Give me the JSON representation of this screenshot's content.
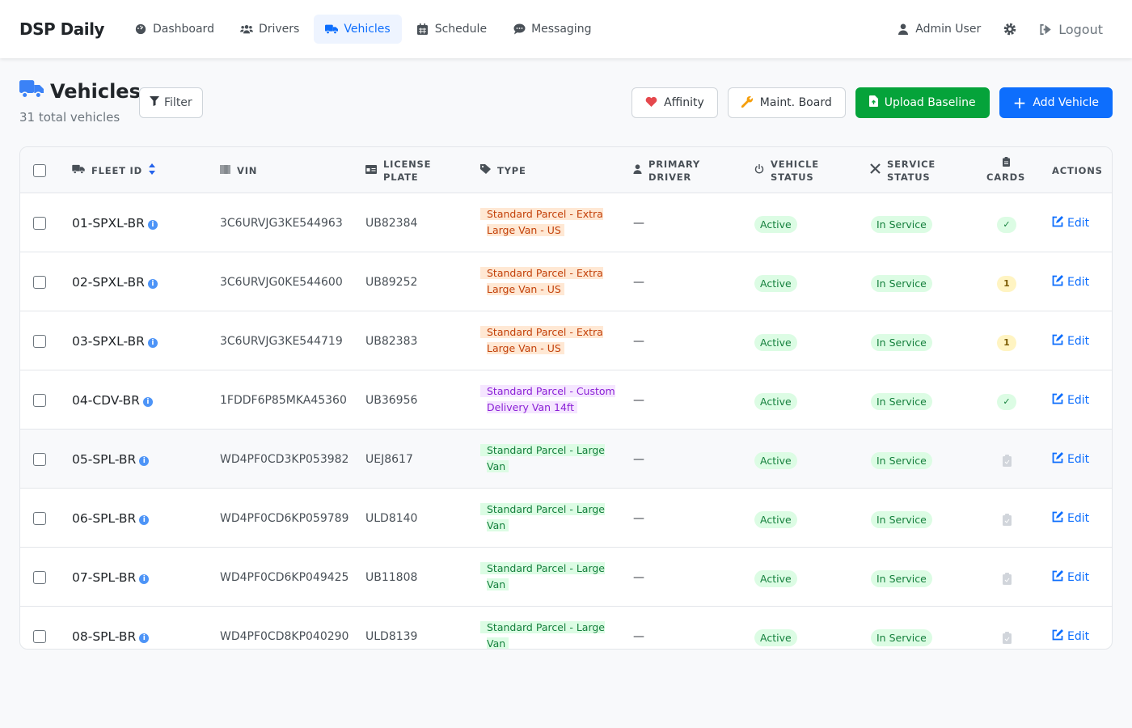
{
  "nav": {
    "brand": "DSP Daily",
    "items": [
      {
        "label": "Dashboard",
        "icon": "gauge-icon"
      },
      {
        "label": "Drivers",
        "icon": "users-icon"
      },
      {
        "label": "Vehicles",
        "icon": "truck-icon",
        "active": true
      },
      {
        "label": "Schedule",
        "icon": "calendar-icon"
      },
      {
        "label": "Messaging",
        "icon": "chat-icon"
      }
    ],
    "user": "Admin User",
    "logout": "Logout"
  },
  "page": {
    "title": "Vehicles",
    "subtitle": "31 total vehicles",
    "filter": "Filter",
    "buttons": {
      "affinity": "Affinity",
      "maint": "Maint. Board",
      "upload": "Upload Baseline",
      "add": "Add Vehicle"
    }
  },
  "colors": {
    "primary": "#0d6efd",
    "success": "#05a33a",
    "heart": "#e5484d",
    "wrench": "#f59e0b"
  },
  "table": {
    "headers": {
      "fleet": "FLEET ID",
      "vin": "VIN",
      "plate1": "LICENSE",
      "plate2": "PLATE",
      "type": "TYPE",
      "driver1": "PRIMARY",
      "driver2": "DRIVER",
      "vstatus1": "VEHICLE",
      "vstatus2": "STATUS",
      "sstatus1": "SERVICE",
      "sstatus2": "STATUS",
      "cards": "CARDS",
      "actions": "ACTIONS"
    },
    "rows": [
      {
        "fleet": "01-SPXL-BR",
        "vin": "3C6URVJG3KE544963",
        "plate": "UB82384",
        "type1": "Standard Parcel - Extra",
        "type2": "Large Van - US",
        "type_color": "orange",
        "driver": "—",
        "vstatus": "Active",
        "sstatus": "In Service",
        "cards": "✓",
        "cards_kind": "ok",
        "edit": "Edit"
      },
      {
        "fleet": "02-SPXL-BR",
        "vin": "3C6URVJG0KE544600",
        "plate": "UB89252",
        "type1": "Standard Parcel - Extra",
        "type2": "Large Van - US",
        "type_color": "orange",
        "driver": "—",
        "vstatus": "Active",
        "sstatus": "In Service",
        "cards": "1",
        "cards_kind": "warn",
        "edit": "Edit"
      },
      {
        "fleet": "03-SPXL-BR",
        "vin": "3C6URVJG3KE544719",
        "plate": "UB82383",
        "type1": "Standard Parcel - Extra",
        "type2": "Large Van - US",
        "type_color": "orange",
        "driver": "—",
        "vstatus": "Active",
        "sstatus": "In Service",
        "cards": "1",
        "cards_kind": "warn",
        "edit": "Edit"
      },
      {
        "fleet": "04-CDV-BR",
        "vin": "1FDDF6P85MKA45360",
        "plate": "UB36956",
        "type1": "Standard Parcel - Custom",
        "type2": "Delivery Van 14ft",
        "type_color": "purple",
        "driver": "—",
        "vstatus": "Active",
        "sstatus": "In Service",
        "cards": "✓",
        "cards_kind": "ok",
        "edit": "Edit"
      },
      {
        "fleet": "05-SPL-BR",
        "vin": "WD4PF0CD3KP053982",
        "plate": "UEJ8617",
        "type1": "Standard Parcel - Large",
        "type2": "Van",
        "type_color": "green",
        "driver": "—",
        "vstatus": "Active",
        "sstatus": "In Service",
        "cards": "",
        "cards_kind": "none",
        "edit": "Edit"
      },
      {
        "fleet": "06-SPL-BR",
        "vin": "WD4PF0CD6KP059789",
        "plate": "ULD8140",
        "type1": "Standard Parcel - Large",
        "type2": "Van",
        "type_color": "green",
        "driver": "—",
        "vstatus": "Active",
        "sstatus": "In Service",
        "cards": "",
        "cards_kind": "none",
        "edit": "Edit"
      },
      {
        "fleet": "07-SPL-BR",
        "vin": "WD4PF0CD6KP049425",
        "plate": "UB11808",
        "type1": "Standard Parcel - Large",
        "type2": "Van",
        "type_color": "green",
        "driver": "—",
        "vstatus": "Active",
        "sstatus": "In Service",
        "cards": "",
        "cards_kind": "none",
        "edit": "Edit"
      },
      {
        "fleet": "08-SPL-BR",
        "vin": "WD4PF0CD8KP040290",
        "plate": "ULD8139",
        "type1": "Standard Parcel - Large",
        "type2": "Van",
        "type_color": "green",
        "driver": "—",
        "vstatus": "Active",
        "sstatus": "In Service",
        "cards": "",
        "cards_kind": "none",
        "edit": "Edit"
      }
    ]
  }
}
